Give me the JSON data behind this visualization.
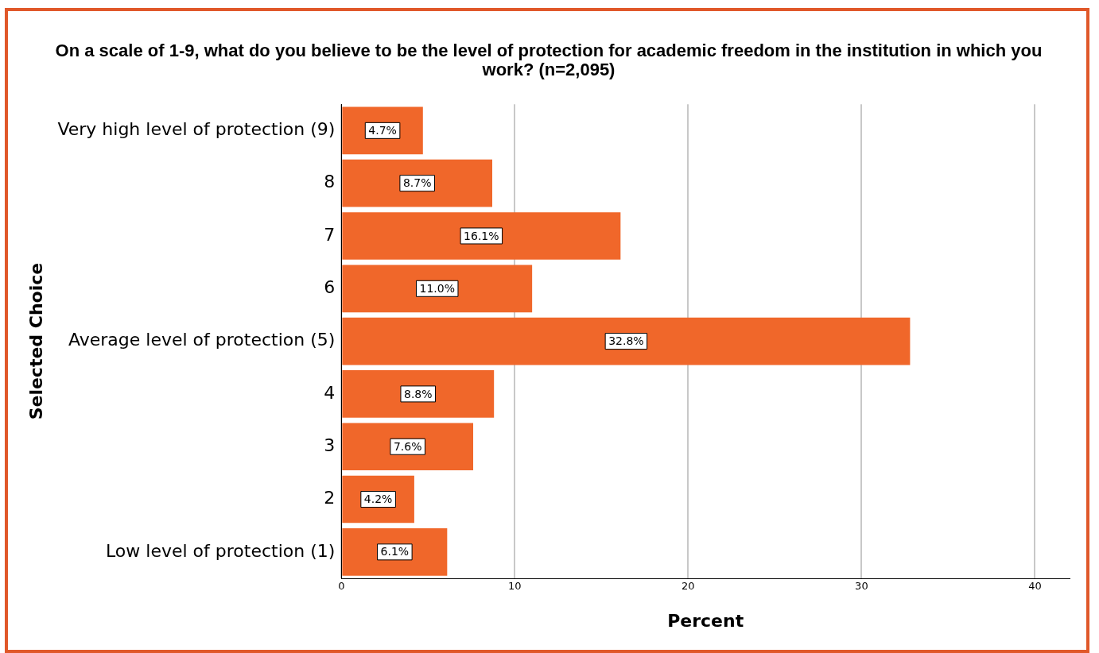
{
  "chart_data": {
    "type": "bar",
    "orientation": "horizontal",
    "title": "On a scale of 1-9, what do you believe to be the level of protection for academic freedom in the institution in which you work? (n=2,095)",
    "xlabel": "Percent",
    "ylabel": "Selected Choice",
    "categories": [
      "Very high level of protection (9)",
      "8",
      "7",
      "6",
      "Average level of protection (5)",
      "4",
      "3",
      "2",
      "Low level of protection (1)"
    ],
    "values": [
      4.7,
      8.7,
      16.1,
      11.0,
      32.8,
      8.8,
      7.6,
      4.2,
      6.1
    ],
    "value_labels": [
      "4.7%",
      "8.7%",
      "16.1%",
      "11.0%",
      "32.8%",
      "8.8%",
      "7.6%",
      "4.2%",
      "6.1%"
    ],
    "color": "#f0672a",
    "xlim": [
      0,
      42
    ],
    "xticks": [
      0,
      10,
      20,
      30,
      40
    ],
    "grid": "x",
    "legend": false
  }
}
